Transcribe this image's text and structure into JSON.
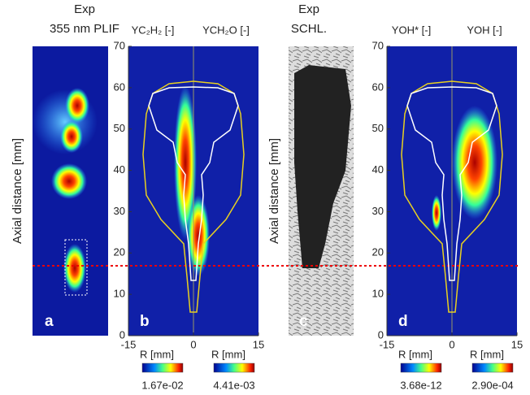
{
  "panels": [
    {
      "label": "a",
      "title": [
        "Exp",
        "355 nm PLIF"
      ],
      "ylabel": "Axial distance [mm]"
    },
    {
      "label": "b",
      "titles": [
        "YC₂H₂ [-]",
        "YCH₂O [-]"
      ],
      "xlabels": [
        "R [mm]",
        "R [mm]"
      ],
      "colorbar_labels": [
        "1.67e-02",
        "4.41e-03"
      ],
      "xticks": [
        -15,
        0,
        15
      ],
      "yticks": [
        0,
        10,
        20,
        30,
        40,
        50,
        60,
        70
      ]
    },
    {
      "label": "c",
      "title": [
        "Exp",
        "SCHL."
      ],
      "ylabel": "Axial distance [mm]"
    },
    {
      "label": "d",
      "titles": [
        "YOH* [-]",
        "YOH [-]"
      ],
      "xlabels": [
        "R [mm]",
        "R [mm]"
      ],
      "colorbar_labels": [
        "3.68e-12",
        "2.90e-04"
      ],
      "xticks": [
        -15,
        0,
        15
      ],
      "yticks": [
        0,
        10,
        20,
        30,
        40,
        50,
        60,
        70
      ]
    }
  ]
}
